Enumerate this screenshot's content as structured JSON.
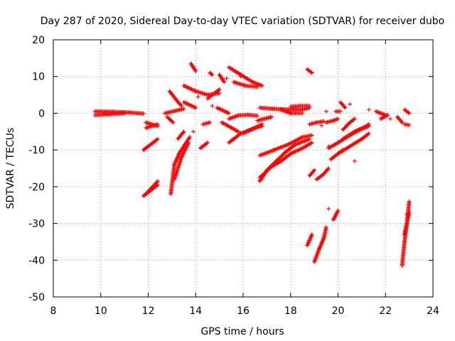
{
  "chart_data": {
    "type": "scatter",
    "title": "Day 287 of 2020, Sidereal Day-to-day VTEC variation (SDTVAR) for receiver dubo",
    "xlabel": "GPS time / hours",
    "ylabel": "SDTVAR / TECUs",
    "xlim": [
      8,
      24
    ],
    "ylim": [
      -50,
      20
    ],
    "xticks": [
      8,
      10,
      12,
      14,
      16,
      18,
      20,
      22,
      24
    ],
    "yticks": [
      -50,
      -40,
      -30,
      -20,
      -10,
      0,
      10,
      20
    ],
    "grid": true,
    "marker": "+",
    "color": "#ff0000",
    "segments": [
      [
        [
          9.75,
          0.5
        ],
        [
          10.5,
          0.4
        ],
        [
          11.2,
          0.2
        ],
        [
          11.8,
          -0.1
        ]
      ],
      [
        [
          9.75,
          -0.5
        ],
        [
          10.3,
          -0.3
        ],
        [
          11.0,
          0.0
        ]
      ],
      [
        [
          11.9,
          -2.5
        ],
        [
          12.4,
          -3.5
        ]
      ],
      [
        [
          11.9,
          -4.0
        ],
        [
          12.4,
          -3.0
        ]
      ],
      [
        [
          11.8,
          -10.0
        ],
        [
          12.4,
          -7.0
        ]
      ],
      [
        [
          11.8,
          -22.5
        ],
        [
          12.4,
          -19.5
        ]
      ],
      [
        [
          11.9,
          -22.0
        ],
        [
          12.4,
          -18.5
        ]
      ],
      [
        [
          12.7,
          0.0
        ],
        [
          13.5,
          1.2
        ]
      ],
      [
        [
          12.9,
          6.0
        ],
        [
          13.2,
          3.5
        ],
        [
          13.4,
          2.0
        ]
      ],
      [
        [
          12.95,
          -22.0
        ],
        [
          13.1,
          -14.0
        ],
        [
          13.3,
          -11.0
        ],
        [
          13.55,
          -8.5
        ],
        [
          13.75,
          -6.5
        ]
      ],
      [
        [
          13.1,
          -18.0
        ],
        [
          13.4,
          -12.0
        ],
        [
          13.7,
          -8.0
        ]
      ],
      [
        [
          13.25,
          -7.0
        ],
        [
          13.5,
          -5.0
        ]
      ],
      [
        [
          12.8,
          -1.0
        ],
        [
          13.05,
          -2.5
        ]
      ],
      [
        [
          13.8,
          13.5
        ],
        [
          14.0,
          11.5
        ]
      ],
      [
        [
          13.5,
          7.5
        ],
        [
          14.0,
          6.0
        ],
        [
          14.5,
          5.0
        ],
        [
          15.0,
          5.5
        ]
      ],
      [
        [
          13.5,
          3.0
        ],
        [
          14.0,
          1.5
        ]
      ],
      [
        [
          14.2,
          -9.5
        ],
        [
          14.5,
          -8.0
        ]
      ],
      [
        [
          14.3,
          -3.0
        ],
        [
          14.6,
          -2.5
        ]
      ],
      [
        [
          14.5,
          4.0
        ],
        [
          15.0,
          6.5
        ]
      ],
      [
        [
          14.6,
          11.0
        ],
        [
          14.7,
          10.5
        ]
      ],
      [
        [
          15.0,
          10.5
        ],
        [
          15.2,
          8.5
        ]
      ],
      [
        [
          14.9,
          1.5
        ],
        [
          15.4,
          0.0
        ]
      ],
      [
        [
          15.4,
          12.5
        ],
        [
          15.9,
          10.5
        ],
        [
          16.4,
          8.5
        ],
        [
          16.8,
          7.5
        ]
      ],
      [
        [
          15.6,
          8.5
        ],
        [
          16.1,
          7.5
        ],
        [
          16.6,
          7.2
        ]
      ],
      [
        [
          15.4,
          -1.5
        ],
        [
          15.8,
          -0.6
        ],
        [
          16.2,
          -0.4
        ],
        [
          16.6,
          -0.7
        ]
      ],
      [
        [
          15.4,
          -8.0
        ],
        [
          15.9,
          -5.5
        ],
        [
          16.5,
          -4.0
        ],
        [
          16.8,
          -3.5
        ]
      ],
      [
        [
          15.1,
          -2.5
        ],
        [
          15.8,
          -5.0
        ]
      ],
      [
        [
          16.0,
          -5.5
        ],
        [
          16.8,
          -3.0
        ]
      ],
      [
        [
          16.7,
          1.5
        ],
        [
          17.3,
          1.2
        ],
        [
          17.9,
          1.0
        ],
        [
          18.5,
          1.0
        ],
        [
          18.8,
          1.5
        ]
      ],
      [
        [
          16.6,
          -2.0
        ],
        [
          17.2,
          -1.0
        ]
      ],
      [
        [
          17.6,
          1.0
        ],
        [
          18.0,
          0.0
        ],
        [
          18.5,
          0.0
        ]
      ],
      [
        [
          18.0,
          1.8
        ],
        [
          18.4,
          2.0
        ],
        [
          18.8,
          2.0
        ]
      ],
      [
        [
          16.7,
          -11.5
        ],
        [
          17.3,
          -10.0
        ],
        [
          17.9,
          -8.5
        ],
        [
          18.5,
          -6.5
        ],
        [
          18.9,
          -6.0
        ]
      ],
      [
        [
          16.7,
          -18.5
        ],
        [
          17.0,
          -15.5
        ],
        [
          17.4,
          -13.0
        ],
        [
          17.8,
          -10.5
        ],
        [
          18.2,
          -8.5
        ],
        [
          18.8,
          -7.0
        ]
      ],
      [
        [
          16.7,
          -17.5
        ],
        [
          17.2,
          -14.5
        ],
        [
          17.6,
          -13.0
        ],
        [
          18.0,
          -11.0
        ],
        [
          18.5,
          -9.5
        ],
        [
          18.9,
          -8.0
        ]
      ],
      [
        [
          18.7,
          12.0
        ],
        [
          18.9,
          11.0
        ]
      ],
      [
        [
          18.8,
          -3.0
        ],
        [
          19.1,
          -2.5
        ],
        [
          19.4,
          -2.2
        ]
      ],
      [
        [
          18.8,
          -17.0
        ],
        [
          19.0,
          -15.5
        ]
      ],
      [
        [
          18.7,
          -36.0
        ],
        [
          18.9,
          -33.0
        ]
      ],
      [
        [
          19.0,
          -40.5
        ],
        [
          19.2,
          -37.0
        ],
        [
          19.4,
          -34.0
        ],
        [
          19.5,
          -31.0
        ]
      ],
      [
        [
          19.1,
          -18.0
        ],
        [
          19.4,
          -16.5
        ],
        [
          19.6,
          -15.0
        ]
      ],
      [
        [
          19.5,
          -2.5
        ],
        [
          19.8,
          -2.0
        ],
        [
          20.0,
          -1.5
        ]
      ],
      [
        [
          19.7,
          -12.5
        ],
        [
          20.0,
          -11.0
        ],
        [
          20.2,
          -10.0
        ]
      ],
      [
        [
          19.9,
          0.5
        ],
        [
          20.1,
          0.5
        ]
      ],
      [
        [
          19.8,
          -29.0
        ],
        [
          20.0,
          -26.5
        ]
      ],
      [
        [
          20.1,
          3.0
        ],
        [
          20.3,
          1.5
        ]
      ],
      [
        [
          20.2,
          -4.5
        ],
        [
          20.5,
          -2.5
        ],
        [
          20.7,
          -1.5
        ]
      ],
      [
        [
          19.6,
          -9.5
        ],
        [
          20.0,
          -8.0
        ],
        [
          20.5,
          -6.0
        ],
        [
          20.9,
          -4.5
        ],
        [
          21.3,
          -3.5
        ]
      ],
      [
        [
          20.0,
          -11.0
        ],
        [
          20.5,
          -9.0
        ],
        [
          21.0,
          -7.0
        ],
        [
          21.3,
          -5.5
        ]
      ],
      [
        [
          20.2,
          -7.0
        ],
        [
          20.7,
          -5.0
        ],
        [
          21.2,
          -3.5
        ],
        [
          21.3,
          -3.0
        ]
      ],
      [
        [
          21.6,
          0.5
        ],
        [
          22.0,
          -0.5
        ]
      ],
      [
        [
          21.8,
          -1.5
        ],
        [
          22.1,
          -0.5
        ]
      ],
      [
        [
          22.5,
          -1.0
        ],
        [
          22.7,
          -2.5
        ]
      ],
      [
        [
          22.8,
          1.0
        ],
        [
          23.0,
          0.0
        ]
      ],
      [
        [
          22.8,
          -3.0
        ],
        [
          23.0,
          -3.2
        ]
      ],
      [
        [
          22.7,
          -41.5
        ],
        [
          22.8,
          -35.0
        ],
        [
          22.9,
          -30.0
        ],
        [
          23.0,
          -24.0
        ]
      ],
      [
        [
          22.8,
          -33.0
        ],
        [
          23.0,
          -27.0
        ]
      ]
    ],
    "points": [
      [
        19.5,
        0.5
      ],
      [
        20.5,
        2.5
      ],
      [
        21.3,
        1.0
      ],
      [
        19.6,
        -26.0
      ],
      [
        19.6,
        -9.0
      ],
      [
        19.3,
        -3.3
      ],
      [
        13.9,
        -5.0
      ],
      [
        15.6,
        -7.0
      ],
      [
        14.7,
        2.0
      ],
      [
        14.1,
        4.5
      ],
      [
        15.3,
        9.5
      ],
      [
        15.9,
        10.0
      ],
      [
        22.9,
        -27.5
      ],
      [
        22.2,
        -1.5
      ],
      [
        20.7,
        -13.0
      ],
      [
        18.6,
        -7.5
      ]
    ]
  }
}
